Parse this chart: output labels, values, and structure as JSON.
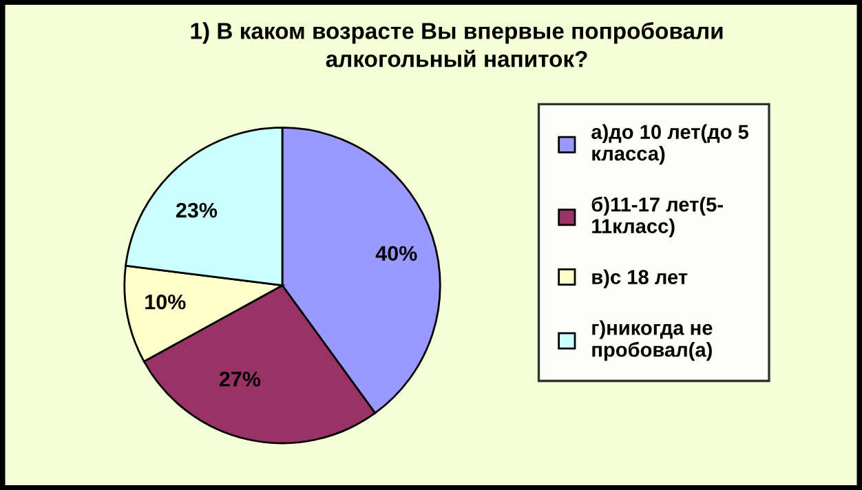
{
  "chart_data": {
    "type": "pie",
    "title": "1) В каком возрасте Вы впервые попробовали\nалкогольный напиток?",
    "categories": [
      "а)до 10 лет(до 5\nкласса)",
      "б)11-17 лет(5-\n11класс)",
      "в)с 18 лет",
      "г)никогда не\nпробовал(а)"
    ],
    "values": [
      40,
      27,
      10,
      23
    ],
    "value_labels": [
      "40%",
      "27%",
      "10%",
      "23%"
    ],
    "colors": [
      "#9999ff",
      "#993366",
      "#ffffcc",
      "#ccffff"
    ],
    "legend": "right"
  }
}
